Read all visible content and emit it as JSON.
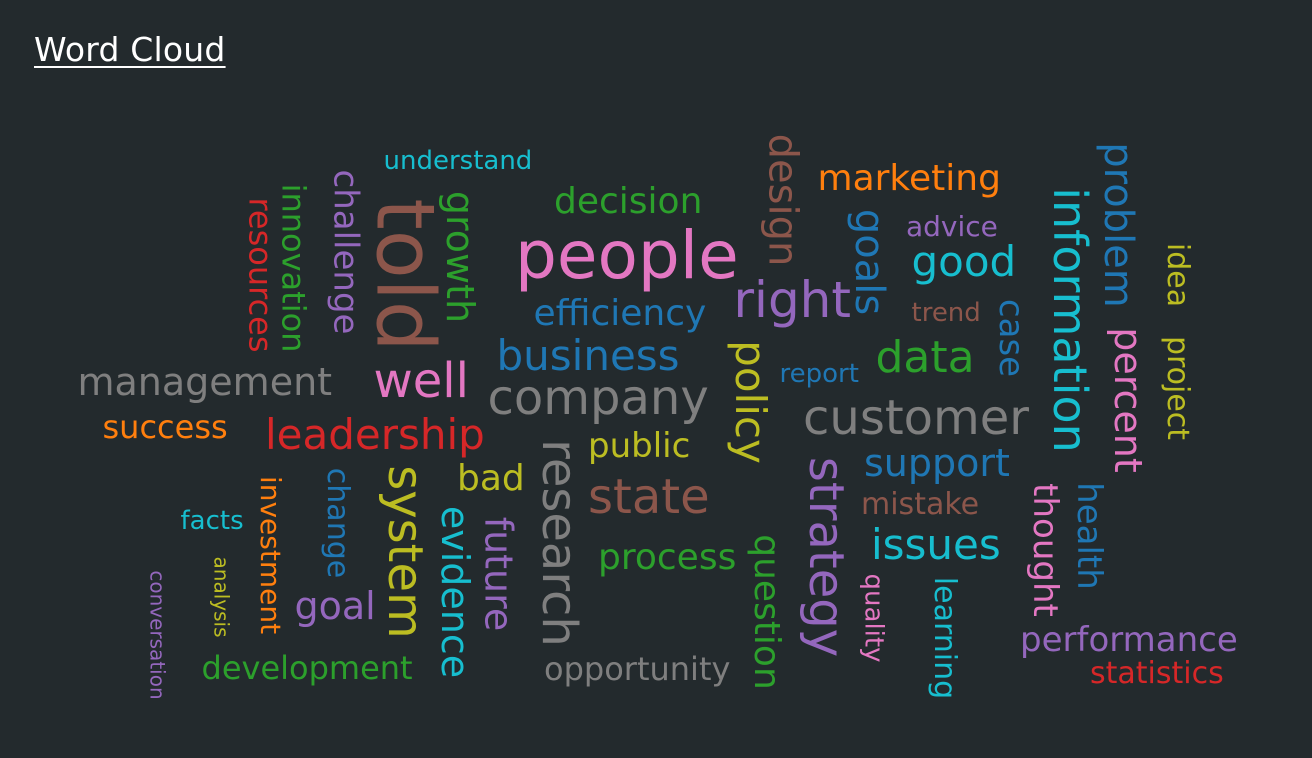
{
  "header": {
    "title": "Word Cloud"
  },
  "colors": {
    "background": "#232a2d",
    "title": "#ffffff",
    "red": "#d62728",
    "green": "#2ca02c",
    "purple": "#9467bd",
    "brown": "#8c564b",
    "cyan": "#17becf",
    "blue": "#1f77b4",
    "pink": "#e377c2",
    "gray": "#7f7f7f",
    "orange": "#ff7f0e",
    "olive": "#bcbd22"
  },
  "words": [
    {
      "text": "understand",
      "color": "cyan"
    },
    {
      "text": "decision",
      "color": "green"
    },
    {
      "text": "design",
      "color": "brown"
    },
    {
      "text": "marketing",
      "color": "orange"
    },
    {
      "text": "problem",
      "color": "blue"
    },
    {
      "text": "resources",
      "color": "red"
    },
    {
      "text": "innovation",
      "color": "green"
    },
    {
      "text": "challenge",
      "color": "purple"
    },
    {
      "text": "told",
      "color": "brown"
    },
    {
      "text": "growth",
      "color": "green"
    },
    {
      "text": "people",
      "color": "pink"
    },
    {
      "text": "goals",
      "color": "blue"
    },
    {
      "text": "advice",
      "color": "purple"
    },
    {
      "text": "good",
      "color": "cyan"
    },
    {
      "text": "information",
      "color": "cyan"
    },
    {
      "text": "idea",
      "color": "olive"
    },
    {
      "text": "project",
      "color": "olive"
    },
    {
      "text": "efficiency",
      "color": "blue"
    },
    {
      "text": "right",
      "color": "purple"
    },
    {
      "text": "trend",
      "color": "brown"
    },
    {
      "text": "case",
      "color": "blue"
    },
    {
      "text": "percent",
      "color": "pink"
    },
    {
      "text": "business",
      "color": "blue"
    },
    {
      "text": "policy",
      "color": "olive"
    },
    {
      "text": "report",
      "color": "blue"
    },
    {
      "text": "data",
      "color": "green"
    },
    {
      "text": "management",
      "color": "gray"
    },
    {
      "text": "well",
      "color": "pink"
    },
    {
      "text": "company",
      "color": "gray"
    },
    {
      "text": "customer",
      "color": "gray"
    },
    {
      "text": "success",
      "color": "orange"
    },
    {
      "text": "leadership",
      "color": "red"
    },
    {
      "text": "public",
      "color": "olive"
    },
    {
      "text": "research",
      "color": "gray"
    },
    {
      "text": "support",
      "color": "blue"
    },
    {
      "text": "change",
      "color": "blue"
    },
    {
      "text": "system",
      "color": "olive"
    },
    {
      "text": "bad",
      "color": "olive"
    },
    {
      "text": "state",
      "color": "brown"
    },
    {
      "text": "strategy",
      "color": "purple"
    },
    {
      "text": "mistake",
      "color": "brown"
    },
    {
      "text": "thought",
      "color": "pink"
    },
    {
      "text": "health",
      "color": "blue"
    },
    {
      "text": "investment",
      "color": "orange"
    },
    {
      "text": "facts",
      "color": "cyan"
    },
    {
      "text": "evidence",
      "color": "cyan"
    },
    {
      "text": "future",
      "color": "purple"
    },
    {
      "text": "issues",
      "color": "cyan"
    },
    {
      "text": "analysis",
      "color": "olive"
    },
    {
      "text": "process",
      "color": "green"
    },
    {
      "text": "question",
      "color": "green"
    },
    {
      "text": "quality",
      "color": "pink"
    },
    {
      "text": "learning",
      "color": "cyan"
    },
    {
      "text": "conversation",
      "color": "purple"
    },
    {
      "text": "goal",
      "color": "purple"
    },
    {
      "text": "performance",
      "color": "purple"
    },
    {
      "text": "development",
      "color": "green"
    },
    {
      "text": "opportunity",
      "color": "gray"
    },
    {
      "text": "statistics",
      "color": "red"
    }
  ]
}
